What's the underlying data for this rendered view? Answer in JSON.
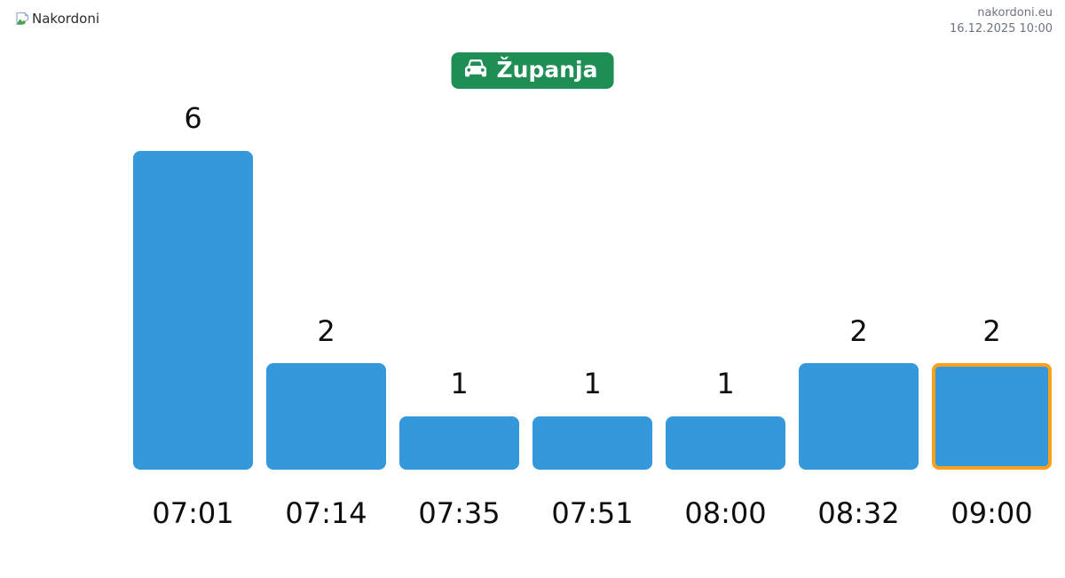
{
  "page": {
    "background": "#ffffff"
  },
  "header": {
    "logo": {
      "alt_text": "Nakordoni",
      "icon": "broken-image-icon"
    },
    "site_link": "nakordoni.eu",
    "timestamp": "16.12.2025 10:00"
  },
  "station_button": {
    "label": "Županja",
    "icon": "car-icon",
    "bg_color": "#1e8e55",
    "text_color": "#ffffff"
  },
  "chart_data": {
    "type": "bar",
    "title": "",
    "xlabel": "",
    "ylabel": "",
    "categories": [
      "07:01",
      "07:14",
      "07:35",
      "07:51",
      "08:00",
      "08:32",
      "09:00"
    ],
    "values": [
      6,
      2,
      1,
      1,
      1,
      2,
      2
    ],
    "value_labels": [
      "6",
      "2",
      "1",
      "1",
      "1",
      "2",
      "2"
    ],
    "highlighted_index": 6,
    "bar_color": "#3498db",
    "highlight_border_color": "#f9a11b",
    "label_color": "#0d0d0d",
    "ylim": [
      0,
      6
    ],
    "grid": false,
    "axes_shown": false,
    "legend": "none"
  }
}
